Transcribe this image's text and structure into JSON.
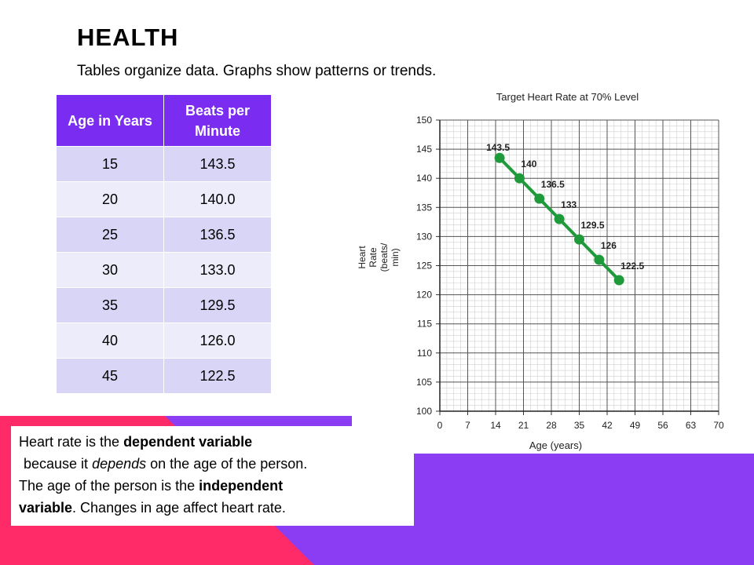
{
  "slide": {
    "title": "HEALTH",
    "subtitle": "Tables organize data. Graphs show patterns or trends."
  },
  "table": {
    "headers": [
      "Age in Years",
      "Beats per Minute"
    ],
    "rows": [
      [
        "15",
        "143.5"
      ],
      [
        "20",
        "140.0"
      ],
      [
        "25",
        "136.5"
      ],
      [
        "30",
        "133.0"
      ],
      [
        "35",
        "129.5"
      ],
      [
        "40",
        "126.0"
      ],
      [
        "45",
        "122.5"
      ]
    ]
  },
  "note": {
    "l1a": "Heart rate is the ",
    "l1b": "dependent variable",
    "l2a": "because it ",
    "l2b": "depends",
    "l2c": " on the age of the person.",
    "l3a": "The age of the person is the ",
    "l3b": "independent",
    "l4a": "variable",
    "l4b": ". Changes in age affect heart rate."
  },
  "colors": {
    "accent_purple": "#7a2cf0",
    "accent_pink": "#ff2a68",
    "line_green": "#1f9a3a"
  },
  "chart_data": {
    "type": "line",
    "title": "Target Heart Rate at 70% Level",
    "xlabel": "Age (years)",
    "ylabel_lines": [
      "Heart",
      "Rate",
      "(beats/",
      "min)"
    ],
    "xlim": [
      0,
      70
    ],
    "ylim": [
      100,
      150
    ],
    "xticks": [
      0,
      7,
      14,
      21,
      28,
      35,
      42,
      49,
      56,
      63,
      70
    ],
    "yticks": [
      100,
      105,
      110,
      115,
      120,
      125,
      130,
      135,
      140,
      145,
      150
    ],
    "grid": true,
    "x": [
      15,
      20,
      25,
      30,
      35,
      40,
      45
    ],
    "y": [
      143.5,
      140,
      136.5,
      133,
      129.5,
      126,
      122.5
    ],
    "point_labels": [
      "143.5",
      "140",
      "136.5",
      "133",
      "129.5",
      "126",
      "122.5"
    ]
  }
}
